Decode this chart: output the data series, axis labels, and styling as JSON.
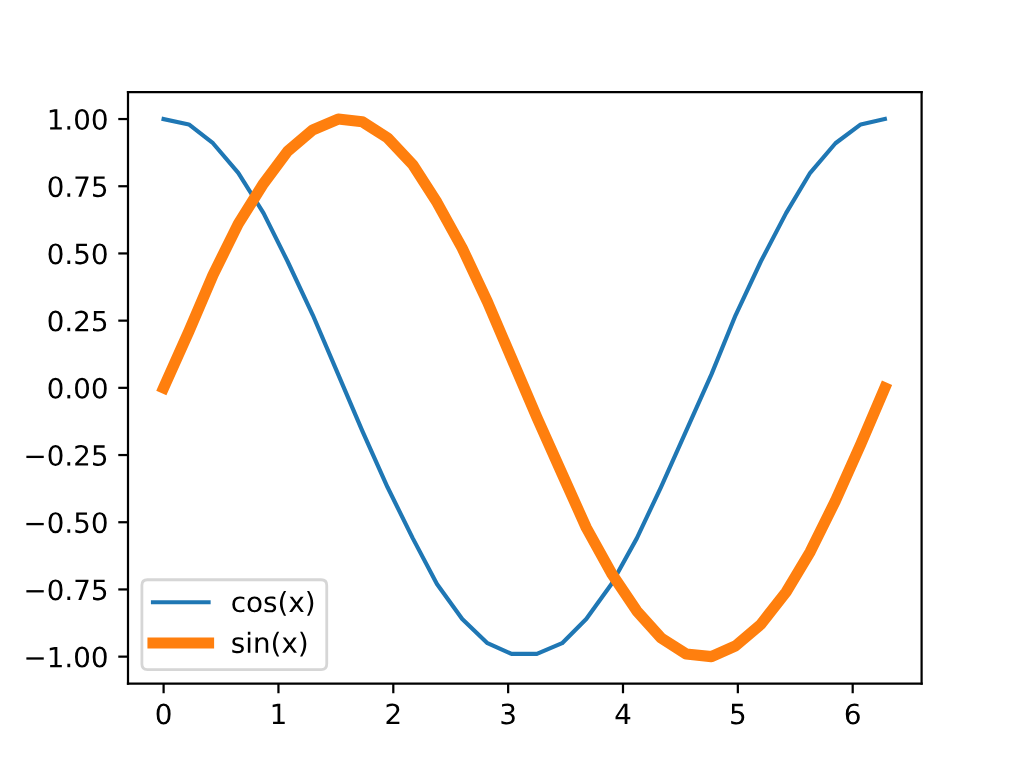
{
  "chart_data": {
    "type": "line",
    "x": [
      0,
      0.22,
      0.43,
      0.65,
      0.87,
      1.08,
      1.3,
      1.52,
      1.73,
      1.95,
      2.17,
      2.38,
      2.6,
      2.82,
      3.03,
      3.25,
      3.47,
      3.68,
      3.9,
      4.12,
      4.33,
      4.55,
      4.77,
      4.98,
      5.2,
      5.42,
      5.63,
      5.85,
      6.07,
      6.28
    ],
    "series": [
      {
        "name": "cos(x)",
        "color": "#1f77b4",
        "values": [
          1.0,
          0.98,
          0.91,
          0.8,
          0.65,
          0.47,
          0.27,
          0.05,
          -0.16,
          -0.37,
          -0.56,
          -0.73,
          -0.86,
          -0.95,
          -0.99,
          -0.99,
          -0.95,
          -0.86,
          -0.73,
          -0.56,
          -0.37,
          -0.16,
          0.05,
          0.27,
          0.47,
          0.65,
          0.8,
          0.91,
          0.98,
          1.0
        ]
      },
      {
        "name": "sin(x)",
        "color": "#ff7f0e",
        "values": [
          0,
          0.21,
          0.42,
          0.61,
          0.76,
          0.88,
          0.96,
          1.0,
          0.99,
          0.93,
          0.83,
          0.69,
          0.52,
          0.32,
          0.11,
          -0.11,
          -0.32,
          -0.52,
          -0.69,
          -0.83,
          -0.93,
          -0.99,
          -1.0,
          -0.96,
          -0.88,
          -0.76,
          -0.61,
          -0.42,
          -0.21,
          0.0
        ]
      }
    ],
    "xlim": [
      -0.31,
      6.6
    ],
    "ylim": [
      -1.1,
      1.1
    ],
    "xticks": [
      0,
      1,
      2,
      3,
      4,
      5,
      6
    ],
    "yticks": [
      {
        "value": -1,
        "label": "−1.00"
      },
      {
        "value": -0.75,
        "label": "−0.75"
      },
      {
        "value": -0.5,
        "label": "−0.50"
      },
      {
        "value": -0.25,
        "label": "−0.25"
      },
      {
        "value": 0,
        "label": "0.00"
      },
      {
        "value": 0.25,
        "label": "0.25"
      },
      {
        "value": 0.5,
        "label": "0.50"
      },
      {
        "value": 0.75,
        "label": "0.75"
      },
      {
        "value": 1,
        "label": "1.00"
      }
    ],
    "grid": false,
    "legend": "lower left"
  }
}
